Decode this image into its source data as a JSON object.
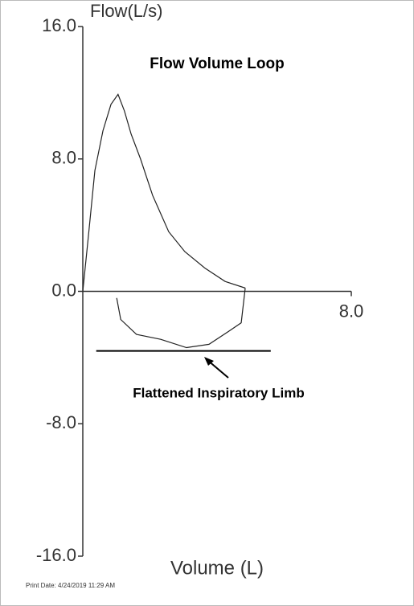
{
  "chart_data": {
    "type": "line",
    "title": "Flow Volume Loop",
    "y_label": "Flow(L/s)",
    "x_label": "Volume (L)",
    "annotation": "Flattened Inspiratory Limb",
    "print_date": "Print Date: 4/24/2019 11:29 AM",
    "xlim": [
      0,
      8
    ],
    "ylim": [
      -16,
      16
    ],
    "xticks": [
      {
        "value": 8,
        "label": "8.0"
      }
    ],
    "yticks": [
      {
        "value": 16,
        "label": "16.0"
      },
      {
        "value": 8,
        "label": "8.0"
      },
      {
        "value": 0,
        "label": "0.0"
      },
      {
        "value": -8,
        "label": "-8.0"
      },
      {
        "value": -16,
        "label": "-16.0"
      }
    ],
    "series": [
      {
        "color": "#222222",
        "x": [
          0,
          0.17,
          0.36,
          0.6,
          0.84,
          1.05,
          1.24,
          1.44,
          1.72,
          2.08,
          2.56,
          3.04,
          3.64,
          4.24,
          4.84
        ],
        "values": [
          0,
          3.4,
          7.3,
          9.7,
          11.3,
          11.9,
          10.9,
          9.5,
          8.0,
          5.8,
          3.6,
          2.4,
          1.4,
          0.6,
          0.2
        ]
      },
      {
        "color": "#222222",
        "x": [
          4.84,
          4.72,
          4.36,
          3.76,
          3.09,
          2.32,
          1.6,
          1.13,
          1.01
        ],
        "values": [
          0.2,
          -1.9,
          -2.4,
          -3.2,
          -3.4,
          -2.9,
          -2.6,
          -1.7,
          -0.4
        ]
      }
    ],
    "annotation_line": {
      "x": [
        0.4,
        5.6
      ],
      "y": -3.6
    }
  }
}
